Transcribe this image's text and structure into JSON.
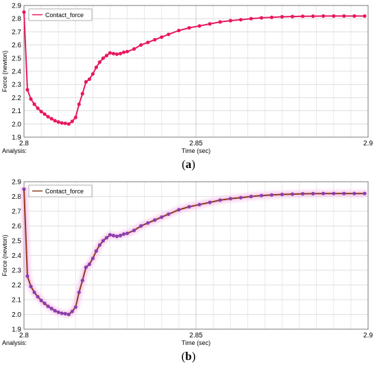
{
  "chart_data": [
    {
      "type": "line",
      "panel_letter": "a",
      "ylabel": "Force (newton)",
      "xlabel": "Time (sec)",
      "analysis_label": "Analysis:",
      "xlim": [
        2.8,
        2.9
      ],
      "ylim": [
        1.9,
        2.9
      ],
      "x_ticks": [
        "2.8",
        "2.85",
        "2.9"
      ],
      "y_ticks": [
        "1.9",
        "2.0",
        "2.1",
        "2.2",
        "2.3",
        "2.4",
        "2.5",
        "2.6",
        "2.7",
        "2.8",
        "2.9"
      ],
      "grid": true,
      "legend_position": "top-left",
      "line_color": "#e8175d",
      "marker_color": "#e8175d",
      "series": [
        {
          "name": "Contact_force",
          "x": [
            2.8,
            2.801,
            2.802,
            2.803,
            2.804,
            2.805,
            2.806,
            2.807,
            2.808,
            2.809,
            2.81,
            2.811,
            2.812,
            2.813,
            2.814,
            2.815,
            2.816,
            2.817,
            2.818,
            2.819,
            2.82,
            2.821,
            2.822,
            2.823,
            2.824,
            2.825,
            2.826,
            2.827,
            2.828,
            2.829,
            2.83,
            2.832,
            2.834,
            2.836,
            2.838,
            2.84,
            2.842,
            2.845,
            2.848,
            2.851,
            2.854,
            2.857,
            2.86,
            2.863,
            2.866,
            2.869,
            2.872,
            2.875,
            2.878,
            2.881,
            2.884,
            2.887,
            2.89,
            2.893,
            2.896,
            2.899
          ],
          "y": [
            2.85,
            2.26,
            2.19,
            2.15,
            2.12,
            2.095,
            2.075,
            2.055,
            2.04,
            2.025,
            2.015,
            2.008,
            2.005,
            2.0,
            2.02,
            2.05,
            2.15,
            2.23,
            2.32,
            2.34,
            2.38,
            2.43,
            2.47,
            2.5,
            2.52,
            2.54,
            2.535,
            2.53,
            2.535,
            2.545,
            2.55,
            2.57,
            2.6,
            2.62,
            2.64,
            2.66,
            2.68,
            2.71,
            2.73,
            2.745,
            2.76,
            2.775,
            2.785,
            2.792,
            2.8,
            2.806,
            2.81,
            2.814,
            2.816,
            2.818,
            2.819,
            2.82,
            2.82,
            2.82,
            2.82,
            2.82
          ]
        }
      ]
    },
    {
      "type": "line",
      "panel_letter": "b",
      "ylabel": "Force (newton)",
      "xlabel": "Time (sec)",
      "analysis_label": "Analysis:",
      "xlim": [
        2.8,
        2.9
      ],
      "ylim": [
        1.9,
        2.9
      ],
      "x_ticks": [
        "2.8",
        "2.85",
        "2.9"
      ],
      "y_ticks": [
        "1.9",
        "2.0",
        "2.1",
        "2.2",
        "2.3",
        "2.4",
        "2.5",
        "2.6",
        "2.7",
        "2.8",
        "2.9"
      ],
      "grid": true,
      "legend_position": "top-left",
      "line_color": "#8b3a1a",
      "marker_color": "#8a3fb0",
      "series": [
        {
          "name": "Contact_force",
          "x": [
            2.8,
            2.801,
            2.802,
            2.803,
            2.804,
            2.805,
            2.806,
            2.807,
            2.808,
            2.809,
            2.81,
            2.811,
            2.812,
            2.813,
            2.814,
            2.815,
            2.816,
            2.817,
            2.818,
            2.819,
            2.82,
            2.821,
            2.822,
            2.823,
            2.824,
            2.825,
            2.826,
            2.827,
            2.828,
            2.829,
            2.83,
            2.832,
            2.834,
            2.836,
            2.838,
            2.84,
            2.842,
            2.845,
            2.848,
            2.851,
            2.854,
            2.857,
            2.86,
            2.863,
            2.866,
            2.869,
            2.872,
            2.875,
            2.878,
            2.881,
            2.884,
            2.887,
            2.89,
            2.893,
            2.896,
            2.899
          ],
          "y": [
            2.85,
            2.26,
            2.19,
            2.15,
            2.12,
            2.095,
            2.075,
            2.055,
            2.04,
            2.025,
            2.015,
            2.008,
            2.005,
            2.0,
            2.02,
            2.05,
            2.15,
            2.23,
            2.32,
            2.34,
            2.38,
            2.43,
            2.47,
            2.5,
            2.52,
            2.54,
            2.535,
            2.53,
            2.535,
            2.545,
            2.55,
            2.57,
            2.6,
            2.62,
            2.64,
            2.66,
            2.68,
            2.71,
            2.73,
            2.745,
            2.76,
            2.775,
            2.785,
            2.792,
            2.8,
            2.806,
            2.81,
            2.814,
            2.816,
            2.818,
            2.819,
            2.82,
            2.82,
            2.82,
            2.82,
            2.82
          ]
        }
      ]
    }
  ]
}
